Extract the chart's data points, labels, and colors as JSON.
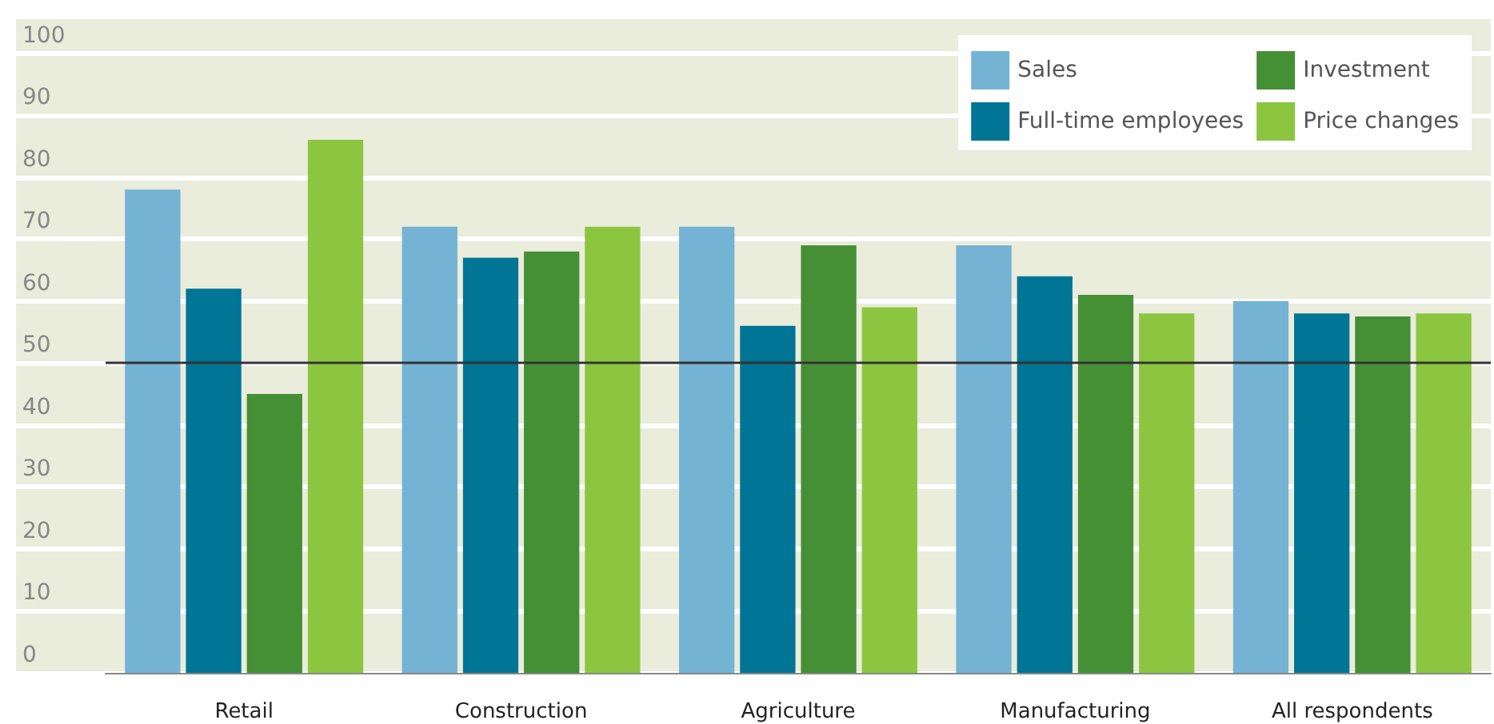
{
  "chart_data": {
    "type": "bar",
    "categories": [
      "Retail",
      "Construction",
      "Agriculture",
      "Manufacturing",
      "All respondents"
    ],
    "series": [
      {
        "name": "Sales",
        "color": "#74b3d3",
        "values": [
          78,
          72,
          72,
          69,
          60
        ]
      },
      {
        "name": "Full-time employees",
        "color": "#007595",
        "values": [
          62,
          67,
          56,
          64,
          58
        ]
      },
      {
        "name": "Investment",
        "color": "#458f35",
        "values": [
          45,
          68,
          69,
          61,
          57.5
        ]
      },
      {
        "name": "Price changes",
        "color": "#8cc640",
        "values": [
          86,
          72,
          59,
          58,
          58
        ]
      }
    ],
    "ylim": [
      0,
      106
    ],
    "yticks": [
      0,
      10,
      20,
      30,
      40,
      50,
      60,
      70,
      80,
      90,
      100
    ],
    "grid": "y",
    "legend": "top right",
    "ref_lines": [
      {
        "axis": "y",
        "value": 50,
        "color": "#333333"
      }
    ]
  }
}
